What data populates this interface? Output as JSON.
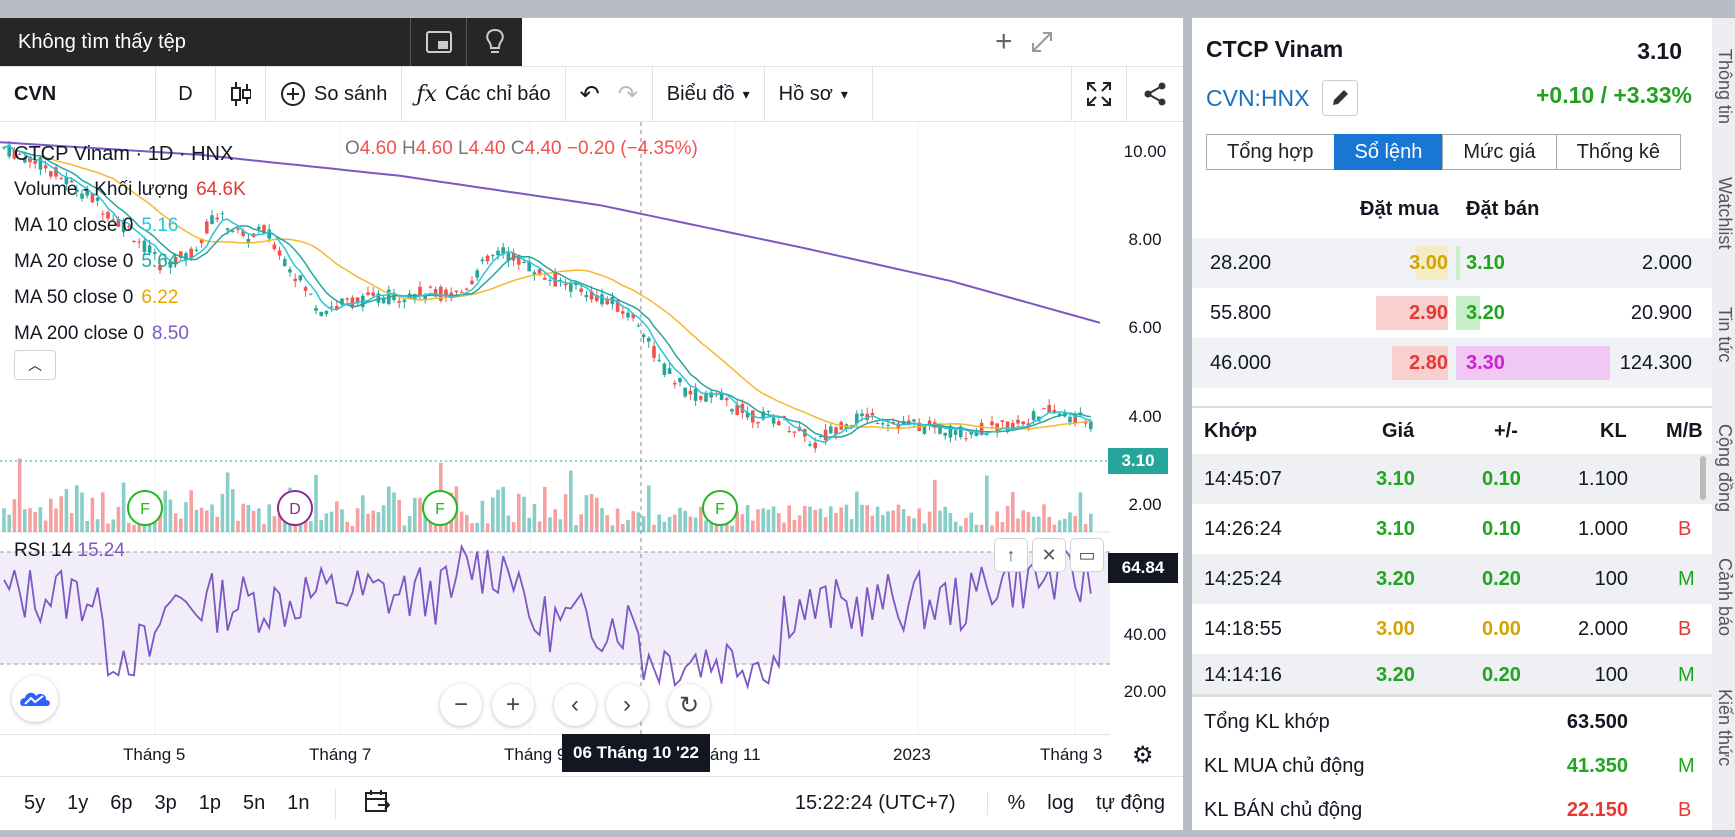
{
  "notification": {
    "text": "Không tìm thấy tệp"
  },
  "toolbar": {
    "symbol": "CVN",
    "interval": "D",
    "compare": "So sánh",
    "indicators": "Các chỉ báo",
    "chart_type": "Biểu đồ",
    "profile": "Hồ sơ"
  },
  "legend": {
    "title": "CTCP Vinam · 1D · HNX",
    "open_label": "O",
    "open": "4.60",
    "high_label": "H",
    "high": "4.60",
    "low_label": "L",
    "low": "4.40",
    "close_label": "C",
    "close": "4.40",
    "change": "−0.20 (−4.35%)",
    "volume_label": "Volume - Khối lượng",
    "volume": "64.6K",
    "ma10_label": "MA 10 close 0",
    "ma10": "5.16",
    "ma20_label": "MA 20 close 0",
    "ma20": "5.64",
    "ma50_label": "MA 50 close 0",
    "ma50": "6.22",
    "ma200_label": "MA 200 close 0",
    "ma200": "8.50"
  },
  "yaxis": [
    "10.00",
    "8.00",
    "6.00",
    "4.00",
    "2.00"
  ],
  "rsi_axis": [
    "60.00",
    "40.00",
    "20.00"
  ],
  "price_tag": "3.10",
  "rsi": {
    "label": "RSI 14",
    "value": "15.24",
    "tag": "64.84"
  },
  "events": [
    "F",
    "D",
    "F",
    "F"
  ],
  "xaxis": [
    "Tháng 5",
    "Tháng 7",
    "Tháng 9",
    "Tháng 11",
    "2023",
    "Tháng 3"
  ],
  "crosshair_date": "06 Tháng 10 '22",
  "bottom": {
    "ranges": [
      "5y",
      "1y",
      "6p",
      "3p",
      "1p",
      "5n",
      "1n"
    ],
    "time": "15:22:24 (UTC+7)",
    "pct": "%",
    "log": "log",
    "auto": "tự động"
  },
  "colors": {
    "ma10": "#26c6da",
    "ma20": "#26a69a",
    "ma50": "#f5b82e",
    "ma200": "#7e57c2",
    "up": "#26a69a",
    "down": "#ef5350",
    "rsi": "#7e57c2"
  },
  "panel": {
    "name": "CTCP Vinam",
    "price": "3.10",
    "code": "CVN:HNX",
    "change": "+0.10 / +3.33%",
    "tabs": [
      "Tổng hợp",
      "Sổ lệnh",
      "Mức giá",
      "Thống kê"
    ],
    "orderbook_headers": {
      "buy": "Đặt mua",
      "sell": "Đặt bán"
    },
    "orderbook": [
      {
        "buy_vol": "28.200",
        "buy_price": "3.00",
        "sell_price": "3.10",
        "sell_vol": "2.000"
      },
      {
        "buy_vol": "55.800",
        "buy_price": "2.90",
        "sell_price": "3.20",
        "sell_vol": "20.900"
      },
      {
        "buy_vol": "46.000",
        "buy_price": "2.80",
        "sell_price": "3.30",
        "sell_vol": "124.300"
      }
    ],
    "match_headers": {
      "time": "Khớp",
      "price": "Giá",
      "change": "+/-",
      "vol": "KL",
      "side": "M/B"
    },
    "matches": [
      {
        "time": "14:45:07",
        "price": "3.10",
        "change": "0.10",
        "vol": "1.100",
        "side": ""
      },
      {
        "time": "14:26:24",
        "price": "3.10",
        "change": "0.10",
        "vol": "1.000",
        "side": "B"
      },
      {
        "time": "14:25:24",
        "price": "3.20",
        "change": "0.20",
        "vol": "100",
        "side": "M"
      },
      {
        "time": "14:18:55",
        "price": "3.00",
        "change": "0.00",
        "vol": "2.000",
        "side": "B"
      },
      {
        "time": "14:14:16",
        "price": "3.20",
        "change": "0.20",
        "vol": "100",
        "side": "M"
      }
    ],
    "summary": [
      {
        "label": "Tổng KL khớp",
        "value": "63.500",
        "side": ""
      },
      {
        "label": "KL MUA chủ động",
        "value": "41.350",
        "side": "M"
      },
      {
        "label": "KL BÁN chủ động",
        "value": "22.150",
        "side": "B"
      }
    ]
  },
  "side_tabs": [
    "Thông tin",
    "Watchlist",
    "Tin tức",
    "Cộng đồng",
    "Cảnh báo",
    "Kiến thức"
  ]
}
